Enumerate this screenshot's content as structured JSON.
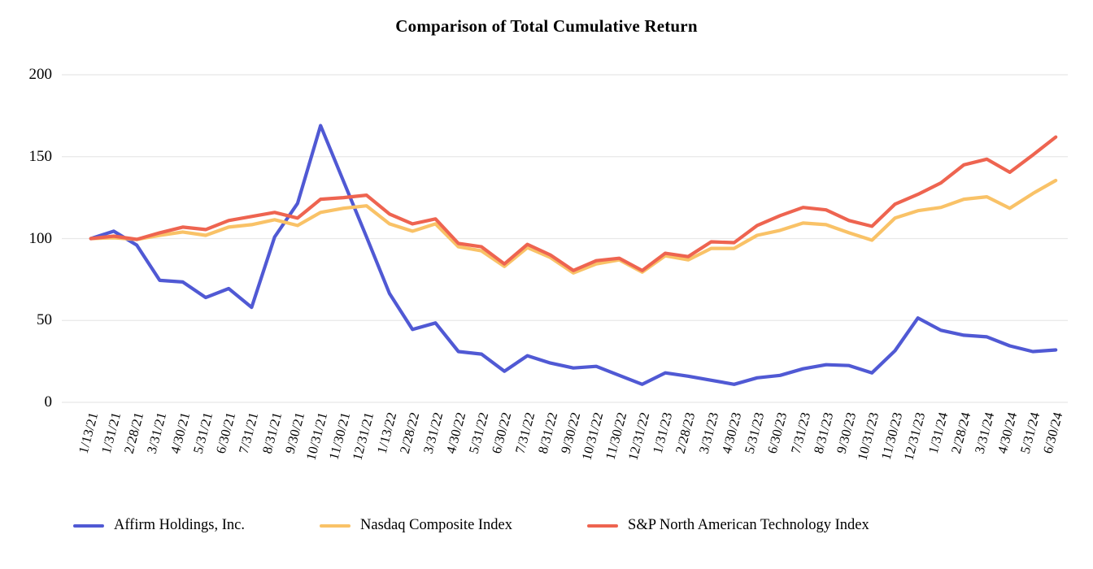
{
  "chart_data": {
    "type": "line",
    "title": "Comparison of Total Cumulative Return",
    "grid": true,
    "gridline_color": "#e8e8e8",
    "background_color": "#ffffff",
    "text_color": "#000000",
    "legend_position": "bottom",
    "x_label_rotation_deg": 75,
    "ylim": [
      0,
      200
    ],
    "yticks": [
      0,
      50,
      100,
      150,
      200
    ],
    "categories": [
      "1/13/21",
      "1/31/21",
      "2/28/21",
      "3/31/21",
      "4/30/21",
      "5/31/21",
      "6/30/21",
      "7/31/21",
      "8/31/21",
      "9/30/21",
      "10/31/21",
      "11/30/21",
      "12/31/21",
      "1/13/22",
      "2/28/22",
      "3/31/22",
      "4/30/22",
      "5/31/22",
      "6/30/22",
      "7/31/22",
      "8/31/22",
      "9/30/22",
      "10/31/22",
      "11/30/22",
      "12/31/22",
      "1/31/23",
      "2/28/23",
      "3/31/23",
      "4/30/23",
      "5/31/23",
      "6/30/23",
      "7/31/23",
      "8/31/23",
      "9/30/23",
      "10/31/23",
      "11/30/23",
      "12/31/23",
      "1/31/24",
      "2/28/24",
      "3/31/24",
      "4/30/24",
      "5/31/24",
      "6/30/24"
    ],
    "series": [
      {
        "name": "Affirm Holdings, Inc.",
        "color": "#5059d4",
        "values": [
          100,
          104.5,
          96,
          74.5,
          73.5,
          64,
          69.5,
          58,
          101,
          121.5,
          169,
          135,
          101,
          66.5,
          44.5,
          48.5,
          31,
          29.5,
          19,
          28.5,
          24,
          21,
          22,
          16.5,
          11,
          18,
          16,
          13.5,
          11,
          15,
          16.5,
          20.5,
          23,
          22.5,
          18,
          31.5,
          51.5,
          44,
          41,
          40,
          34.5,
          31,
          32
        ]
      },
      {
        "name": "Nasdaq Composite Index",
        "color": "#f9c267",
        "values": [
          100,
          100.5,
          99.5,
          102,
          104,
          102,
          107,
          108.5,
          111.5,
          108,
          116,
          118.5,
          120,
          109,
          104.5,
          109,
          95,
          92.5,
          83,
          94.5,
          88.5,
          79,
          84.5,
          87,
          79.5,
          89.5,
          87,
          94,
          94,
          102,
          105,
          109.5,
          108.5,
          103.5,
          99,
          112.5,
          117,
          119,
          124,
          125.5,
          118.5,
          127.5,
          135.5
        ]
      },
      {
        "name": "S&P North American Technology Index",
        "color": "#ee6450",
        "values": [
          100,
          101.5,
          99.5,
          103.5,
          107,
          105.5,
          111,
          113.5,
          116,
          112.5,
          124,
          125,
          126.5,
          115,
          109,
          112,
          97,
          95,
          84.5,
          96.5,
          90,
          80.5,
          86.5,
          88,
          80.5,
          91,
          89,
          98,
          97.5,
          108,
          114,
          119,
          117.5,
          111,
          107.5,
          121,
          127,
          134,
          145,
          148.5,
          140.5,
          151,
          162
        ]
      }
    ]
  }
}
